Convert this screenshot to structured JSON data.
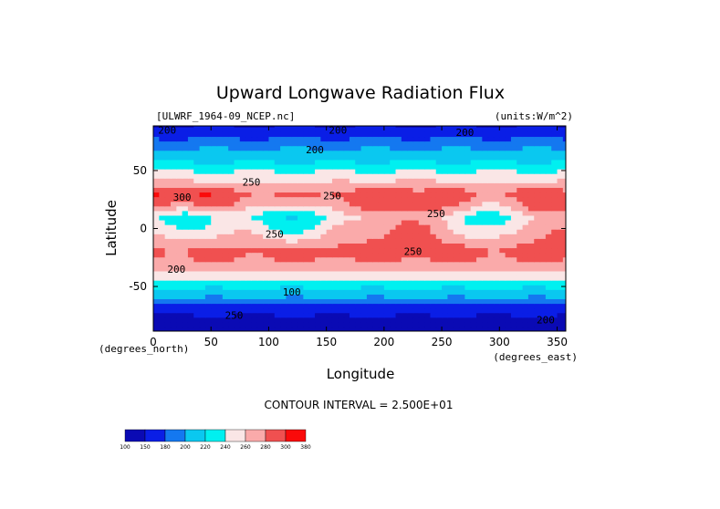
{
  "chart_data": {
    "type": "heatmap",
    "title": "Upward Longwave Radiation Flux",
    "file_label": "[ULWRF_1964-09_NCEP.nc]",
    "units_label": "(units:W/m^2)",
    "xlabel": "Longitude",
    "ylabel": "Latitude",
    "x_units": "(degrees_east)",
    "y_units": "(degrees_north)",
    "xlim": [
      0,
      357.5
    ],
    "ylim": [
      -88.5,
      88.5
    ],
    "x_ticks": [
      0,
      50,
      100,
      150,
      200,
      250,
      300,
      350
    ],
    "y_ticks": [
      -50,
      0,
      50
    ],
    "contour_interval_text": "CONTOUR INTERVAL = 2.500E+01",
    "contour_labels": [
      "200",
      "200",
      "200",
      "200",
      "250",
      "300",
      "250",
      "250",
      "250",
      "250",
      "200",
      "100",
      "250",
      "200"
    ],
    "levels": [
      100,
      150,
      180,
      200,
      220,
      240,
      260,
      280,
      300,
      380
    ],
    "level_labels": [
      "100",
      "150",
      "180",
      "200",
      "220",
      "240",
      "260",
      "280",
      "300",
      "380"
    ],
    "colors": [
      "#0a0ab4",
      "#0a1ee6",
      "#1478f0",
      "#0ac8f0",
      "#00f0f0",
      "#fae6e6",
      "#faaaaa",
      "#f05050",
      "#fa0a0a"
    ],
    "zonal_profile": [
      {
        "lat": 88,
        "value": 150
      },
      {
        "lat": 75,
        "value": 190
      },
      {
        "lat": 60,
        "value": 215
      },
      {
        "lat": 45,
        "value": 250
      },
      {
        "lat": 30,
        "value": 290
      },
      {
        "lat": 20,
        "value": 280
      },
      {
        "lat": 10,
        "value": 255
      },
      {
        "lat": 0,
        "value": 265
      },
      {
        "lat": -10,
        "value": 275
      },
      {
        "lat": -20,
        "value": 290
      },
      {
        "lat": -30,
        "value": 275
      },
      {
        "lat": -40,
        "value": 250
      },
      {
        "lat": -50,
        "value": 225
      },
      {
        "lat": -60,
        "value": 200
      },
      {
        "lat": -70,
        "value": 160
      },
      {
        "lat": -85,
        "value": 130
      }
    ]
  }
}
